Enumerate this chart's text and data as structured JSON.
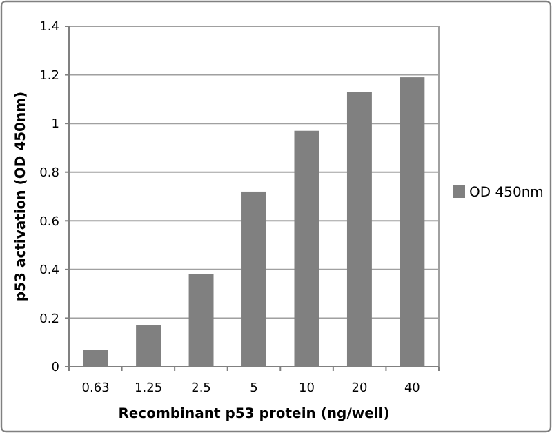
{
  "chart_data": {
    "type": "bar",
    "xlabel": "Recombinant p53 protein (ng/well)",
    "ylabel": "p53 activation (OD 450nm)",
    "categories": [
      "0.63",
      "1.25",
      "2.5",
      "5",
      "10",
      "20",
      "40"
    ],
    "series": [
      {
        "name": "OD 450nm",
        "color": "#808080",
        "values": [
          0.07,
          0.17,
          0.38,
          0.72,
          0.97,
          1.13,
          1.19
        ]
      }
    ],
    "ylim": [
      0,
      1.4
    ],
    "yticks": [
      0,
      0.2,
      0.4,
      0.6,
      0.8,
      1,
      1.2,
      1.4
    ],
    "grid": "y",
    "legend": "right"
  }
}
